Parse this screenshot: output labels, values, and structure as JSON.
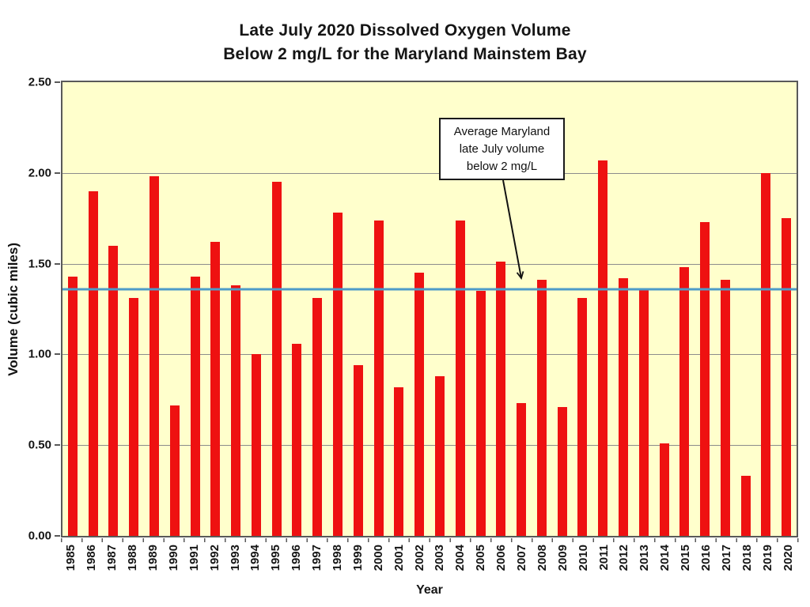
{
  "chart_data": {
    "type": "bar",
    "title": "Late July 2020 Dissolved Oxygen Volume Below 2 mg/L for the Maryland Mainstem Bay",
    "title_lines": [
      "Late July 2020 Dissolved Oxygen Volume",
      "Below 2 mg/L for the Maryland Mainstem Bay"
    ],
    "xlabel": "Year",
    "ylabel": "Volume (cubic miles)",
    "ylim": [
      0,
      2.5
    ],
    "ytick_step": 0.5,
    "yticks": [
      "2.50",
      "2.00",
      "1.50",
      "1.00",
      "0.50",
      "0.00"
    ],
    "grid": true,
    "legend": false,
    "categories": [
      1985,
      1986,
      1987,
      1988,
      1989,
      1990,
      1991,
      1992,
      1993,
      1994,
      1995,
      1996,
      1997,
      1998,
      1999,
      2000,
      2001,
      2002,
      2003,
      2004,
      2005,
      2006,
      2007,
      2008,
      2009,
      2010,
      2011,
      2012,
      2013,
      2014,
      2015,
      2016,
      2017,
      2018,
      2019,
      2020
    ],
    "values": [
      1.43,
      1.9,
      1.6,
      1.31,
      1.98,
      0.72,
      1.43,
      1.62,
      1.38,
      1.0,
      1.95,
      1.06,
      1.31,
      1.78,
      0.94,
      1.74,
      0.82,
      1.45,
      0.88,
      1.74,
      1.35,
      1.51,
      0.73,
      1.41,
      0.71,
      1.31,
      2.07,
      1.42,
      1.36,
      0.51,
      1.48,
      1.73,
      1.41,
      0.33,
      2.0,
      1.75
    ],
    "average_line": {
      "value": 1.36,
      "label": "Average Maryland late July volume below 2 mg/L"
    },
    "annotation": {
      "lines": [
        "Average Maryland",
        "late July volume",
        "below 2 mg/L"
      ]
    },
    "colors": {
      "bar": "#ee1111",
      "average_line": "#4d9bc9",
      "plot_background": "#ffffcc",
      "gridline": "#8c8c8c",
      "axis": "#595959",
      "page_background": "#ffffff"
    }
  }
}
